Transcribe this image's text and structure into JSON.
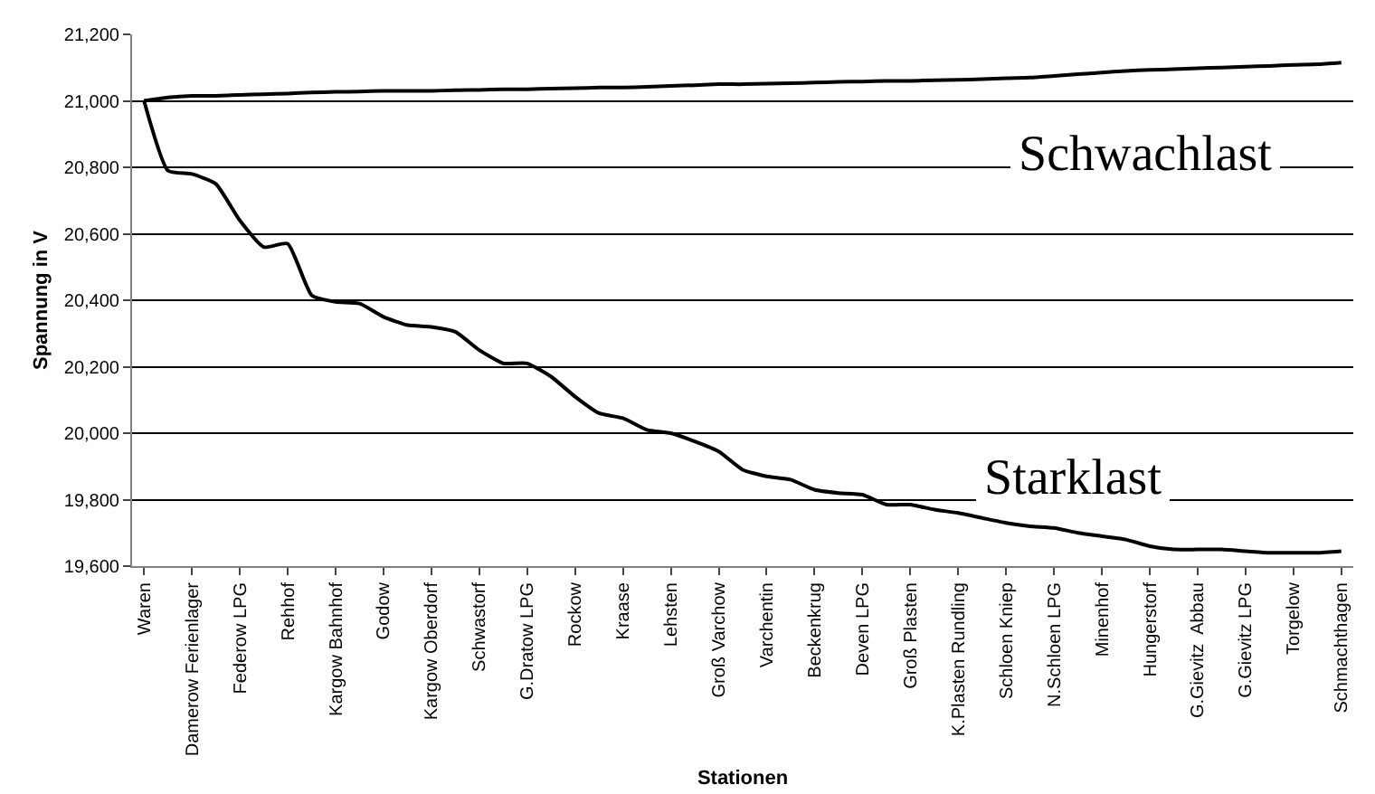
{
  "chart_data": {
    "type": "line",
    "xlabel": "Stationen",
    "ylabel": "Spannung in V",
    "categories": [
      "Waren",
      null,
      "Damerow Ferienlager",
      null,
      "Federow LPG",
      null,
      "Rehhof",
      null,
      "Kargow Bahnhof",
      null,
      "Godow",
      null,
      "Kargow Oberdorf",
      null,
      "Schwastorf",
      null,
      "G.Dratow LPG",
      null,
      "Rockow",
      null,
      "Kraase",
      null,
      "Lehsten",
      null,
      "Groß Varchow",
      null,
      "Varchentin",
      null,
      "Beckenkrug",
      null,
      "Deven LPG",
      null,
      "Groß Plasten",
      null,
      "K.Plasten Rundling",
      null,
      "Schloen Kniep",
      null,
      "N.Schloen LPG",
      null,
      "Minenhof",
      null,
      "Hungerstorf",
      null,
      "G.Gievitz  Abbau",
      null,
      "G.Gievitz LPG",
      null,
      "Torgelow",
      null,
      "Schmachthagen"
    ],
    "series": [
      {
        "color": "#000000",
        "values": [
          21000,
          21010,
          21015,
          21015,
          21018,
          21020,
          21022,
          21025,
          21027,
          21028,
          21030,
          21030,
          21030,
          21032,
          21033,
          21035,
          21035,
          21037,
          21038,
          21040,
          21040,
          21042,
          21045,
          21047,
          21050,
          21050,
          21052,
          21053,
          21055,
          21057,
          21058,
          21060,
          21060,
          21062,
          21063,
          21065,
          21068,
          21070,
          21075,
          21080,
          21085,
          21090,
          21093,
          21095,
          21098,
          21100,
          21103,
          21105,
          21108,
          21110,
          21115
        ]
      },
      {
        "color": "#000000",
        "values": [
          21000,
          20790,
          20780,
          20750,
          20640,
          20560,
          20570,
          20415,
          20395,
          20390,
          20350,
          20325,
          20320,
          20305,
          20250,
          20210,
          20210,
          20170,
          20110,
          20060,
          20045,
          20010,
          20000,
          19975,
          19945,
          19890,
          19870,
          19860,
          19830,
          19820,
          19815,
          19785,
          19785,
          19770,
          19760,
          19745,
          19730,
          19720,
          19715,
          19700,
          19690,
          19680,
          19660,
          19650,
          19650,
          19650,
          19645,
          19640,
          19640,
          19640,
          19645
        ]
      }
    ],
    "ylim": [
      19600,
      21200
    ],
    "yticks": [
      {
        "value": 19600,
        "label": "19,600"
      },
      {
        "value": 19800,
        "label": "19,800"
      },
      {
        "value": 20000,
        "label": "20,000"
      },
      {
        "value": 20200,
        "label": "20,200"
      },
      {
        "value": 20400,
        "label": "20,400"
      },
      {
        "value": 20600,
        "label": "20,600"
      },
      {
        "value": 20800,
        "label": "20,800"
      },
      {
        "value": 21000,
        "label": "21,000"
      },
      {
        "value": 21200,
        "label": "21,200"
      }
    ],
    "grid": "y",
    "marker": "none",
    "line_style": "solid",
    "annotations": [
      "Schwachlast",
      "Starklast"
    ]
  }
}
